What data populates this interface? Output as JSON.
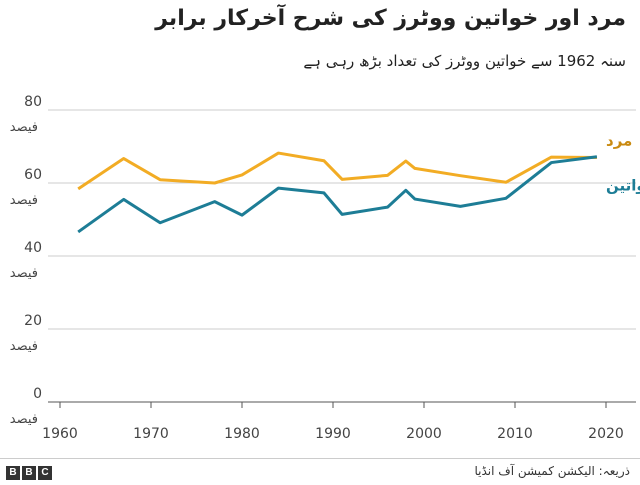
{
  "title": "مرد اور خواتین ووٹرز کی شرح آخرکار برابر",
  "subtitle": "سنہ 1962 سے خواتین ووٹرز کی تعداد بڑھ رہی ہے",
  "source": "ذریعہ: الیکشن کمیشن آف انڈیا",
  "logo": [
    "B",
    "B",
    "C"
  ],
  "chart_data": {
    "type": "line",
    "title": "مرد اور خواتین ووٹرز کی شرح آخرکار برابر",
    "xlabel": "",
    "ylabel": "",
    "xlim": [
      1960,
      2022
    ],
    "ylim": [
      0,
      80
    ],
    "xticks": [
      1960,
      1970,
      1980,
      1990,
      2000,
      2010,
      2020
    ],
    "yticks": [
      {
        "value": 0,
        "label": "0",
        "unit": "فیصد"
      },
      {
        "value": 20,
        "label": "20",
        "unit": "فیصد"
      },
      {
        "value": 40,
        "label": "40",
        "unit": "فیصد"
      },
      {
        "value": 60,
        "label": "60",
        "unit": "فیصد"
      },
      {
        "value": 80,
        "label": "80",
        "unit": "فیصد"
      }
    ],
    "grid": true,
    "series": [
      {
        "name": "مرد",
        "color": "#f2ac24",
        "labelColor": "#c98a10",
        "x": [
          1962,
          1967,
          1971,
          1977,
          1980,
          1984,
          1989,
          1991,
          1996,
          1998,
          1999,
          2004,
          2009,
          2014,
          2019
        ],
        "values": [
          58.4,
          66.7,
          60.9,
          60.0,
          62.2,
          68.2,
          66.1,
          61.0,
          62.1,
          66.0,
          64.0,
          62.0,
          60.2,
          67.1,
          67.0
        ]
      },
      {
        "name": "خواتین",
        "color": "#1d7d96",
        "labelColor": "#1d7d96",
        "x": [
          1962,
          1967,
          1971,
          1977,
          1980,
          1984,
          1989,
          1991,
          1996,
          1998,
          1999,
          2004,
          2009,
          2014,
          2019
        ],
        "values": [
          46.6,
          55.5,
          49.1,
          54.9,
          51.2,
          58.6,
          57.3,
          51.4,
          53.4,
          58.0,
          55.6,
          53.6,
          55.8,
          65.6,
          67.2
        ]
      }
    ]
  }
}
